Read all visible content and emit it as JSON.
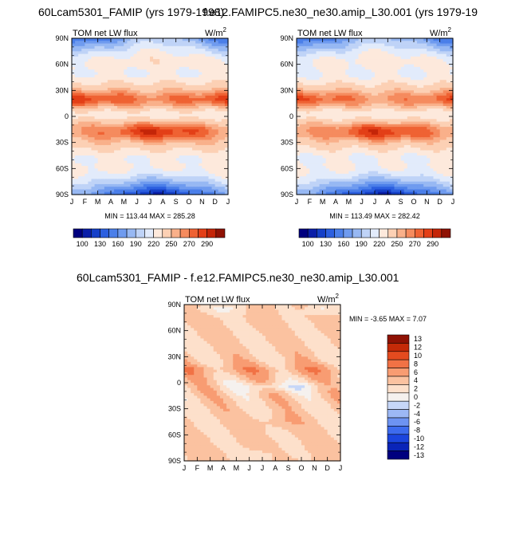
{
  "titles": {
    "left": "60Lcam5301_FAMIP (yrs 1979-1998)",
    "right": "f.e12.FAMIPC5.ne30_ne30.amip_L30.001 (yrs 1979-19",
    "diff": "60Lcam5301_FAMIP - f.e12.FAMIPC5.ne30_ne30.amip_L30.001"
  },
  "colors": {
    "mean_scale": [
      "#00007f",
      "#0a1ea8",
      "#1540c8",
      "#2c5fdf",
      "#4b7fe9",
      "#6f9bef",
      "#97b8f3",
      "#bfd3f7",
      "#e2ebfb",
      "#fde9dc",
      "#fcd0b4",
      "#f9b08a",
      "#f58b5e",
      "#ef6233",
      "#e33f17",
      "#c42508",
      "#8f1204"
    ],
    "diff_scale": [
      "#00007f",
      "#0a24b8",
      "#1b45de",
      "#3d6bee",
      "#6d93f2",
      "#9cb8f5",
      "#c6d7f8",
      "#f5f1ee",
      "#fde0cb",
      "#fbc2a0",
      "#f89c72",
      "#f17245",
      "#e44b1f",
      "#c42a08",
      "#8f1204"
    ]
  },
  "chart_data": [
    {
      "type": "heatmap",
      "panel": "left",
      "title": "60Lcam5301_FAMIP (yrs 1979-1998)",
      "label": "TOM net LW flux",
      "units": "W/m2",
      "x_ticks": [
        "J",
        "F",
        "M",
        "A",
        "M",
        "J",
        "J",
        "A",
        "S",
        "O",
        "N",
        "D",
        "J"
      ],
      "y_ticks": [
        "90N",
        "60N",
        "30N",
        "0",
        "30S",
        "60S",
        "90S"
      ],
      "ylim": [
        -90,
        90
      ],
      "stats": {
        "min_label": "MIN",
        "min": "113.44",
        "max_label": "MAX",
        "max": "285.28"
      },
      "colorbar_labels": [
        "100",
        "130",
        "160",
        "190",
        "220",
        "250",
        "270",
        "290"
      ]
    },
    {
      "type": "heatmap",
      "panel": "right",
      "title": "f.e12.FAMIPC5.ne30_ne30.amip_L30.001 (yrs 1979-19",
      "label": "TOM net LW flux",
      "units": "W/m2",
      "x_ticks": [
        "J",
        "F",
        "M",
        "A",
        "M",
        "J",
        "J",
        "A",
        "S",
        "O",
        "N",
        "D",
        "J"
      ],
      "y_ticks": [
        "90N",
        "60N",
        "30N",
        "0",
        "30S",
        "60S",
        "90S"
      ],
      "ylim": [
        -90,
        90
      ],
      "stats": {
        "min_label": "MIN",
        "min": "113.49",
        "max_label": "MAX",
        "max": "282.42"
      },
      "colorbar_labels": [
        "100",
        "130",
        "160",
        "190",
        "220",
        "250",
        "270",
        "290"
      ]
    },
    {
      "type": "heatmap",
      "panel": "diff",
      "title": "60Lcam5301_FAMIP - f.e12.FAMIPC5.ne30_ne30.amip_L30.001",
      "label": "TOM net LW flux",
      "units": "W/m2",
      "x_ticks": [
        "J",
        "F",
        "M",
        "A",
        "M",
        "J",
        "J",
        "A",
        "S",
        "O",
        "N",
        "D",
        "J"
      ],
      "y_ticks": [
        "90N",
        "60N",
        "30N",
        "0",
        "30S",
        "60S",
        "90S"
      ],
      "ylim": [
        -90,
        90
      ],
      "stats": {
        "min_label": "MIN =",
        "min": "-3.65",
        "max_label": "MAX =",
        "max": "7.07"
      },
      "colorbar_labels": [
        "13",
        "12",
        "10",
        "8",
        "6",
        "4",
        "2",
        "0",
        "-2",
        "-4",
        "-6",
        "-8",
        "-10",
        "-12",
        "-13"
      ]
    }
  ]
}
